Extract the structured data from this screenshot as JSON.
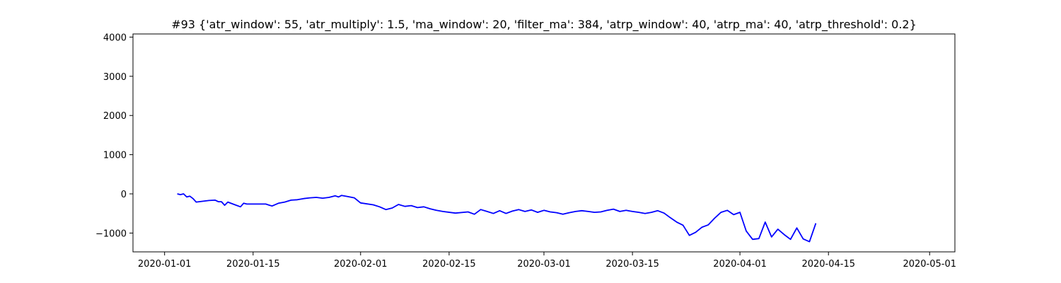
{
  "chart_data": {
    "type": "line",
    "title": "#93 {'atr_window': 55, 'atr_multiply': 1.5, 'ma_window': 20, 'filter_ma': 384, 'atrp_window': 40, 'atrp_ma': 40, 'atrp_threshold': 0.2}",
    "xlabel": "",
    "ylabel": "",
    "xlim": [
      "2019-12-27",
      "2020-05-05"
    ],
    "ylim": [
      -1480,
      4080
    ],
    "x_ticks": [
      "2020-01-01",
      "2020-01-15",
      "2020-02-01",
      "2020-02-15",
      "2020-03-01",
      "2020-03-15",
      "2020-04-01",
      "2020-04-15",
      "2020-05-01"
    ],
    "y_ticks": [
      -1000,
      0,
      1000,
      2000,
      3000,
      4000
    ],
    "grid": false,
    "series": [
      {
        "color": "#0000ff",
        "points": [
          [
            "2020-01-03",
            0
          ],
          [
            "2020-01-03T12:00",
            -20
          ],
          [
            "2020-01-04",
            0
          ],
          [
            "2020-01-04T12:00",
            -80
          ],
          [
            "2020-01-05",
            -60
          ],
          [
            "2020-01-05T12:00",
            -120
          ],
          [
            "2020-01-06",
            -210
          ],
          [
            "2020-01-08",
            -170
          ],
          [
            "2020-01-09",
            -160
          ],
          [
            "2020-01-09T12:00",
            -200
          ],
          [
            "2020-01-10",
            -200
          ],
          [
            "2020-01-10T12:00",
            -290
          ],
          [
            "2020-01-11",
            -210
          ],
          [
            "2020-01-12",
            -270
          ],
          [
            "2020-01-13",
            -330
          ],
          [
            "2020-01-13T12:00",
            -240
          ],
          [
            "2020-01-14",
            -260
          ],
          [
            "2020-01-17",
            -260
          ],
          [
            "2020-01-18",
            -310
          ],
          [
            "2020-01-19",
            -240
          ],
          [
            "2020-01-20",
            -210
          ],
          [
            "2020-01-21",
            -160
          ],
          [
            "2020-01-22",
            -150
          ],
          [
            "2020-01-23",
            -120
          ],
          [
            "2020-01-24",
            -100
          ],
          [
            "2020-01-25",
            -90
          ],
          [
            "2020-01-26",
            -110
          ],
          [
            "2020-01-27",
            -90
          ],
          [
            "2020-01-28",
            -50
          ],
          [
            "2020-01-28T12:00",
            -80
          ],
          [
            "2020-01-29",
            -40
          ],
          [
            "2020-01-30",
            -70
          ],
          [
            "2020-01-31",
            -100
          ],
          [
            "2020-02-01",
            -230
          ],
          [
            "2020-02-03",
            -280
          ],
          [
            "2020-02-04",
            -330
          ],
          [
            "2020-02-05",
            -400
          ],
          [
            "2020-02-06",
            -360
          ],
          [
            "2020-02-07",
            -270
          ],
          [
            "2020-02-08",
            -320
          ],
          [
            "2020-02-09",
            -300
          ],
          [
            "2020-02-10",
            -350
          ],
          [
            "2020-02-11",
            -330
          ],
          [
            "2020-02-12",
            -380
          ],
          [
            "2020-02-13",
            -420
          ],
          [
            "2020-02-14",
            -450
          ],
          [
            "2020-02-16",
            -490
          ],
          [
            "2020-02-18",
            -460
          ],
          [
            "2020-02-19",
            -520
          ],
          [
            "2020-02-20",
            -400
          ],
          [
            "2020-02-21",
            -450
          ],
          [
            "2020-02-22",
            -500
          ],
          [
            "2020-02-23",
            -430
          ],
          [
            "2020-02-24",
            -500
          ],
          [
            "2020-02-25",
            -440
          ],
          [
            "2020-02-26",
            -400
          ],
          [
            "2020-02-27",
            -450
          ],
          [
            "2020-02-28",
            -410
          ],
          [
            "2020-02-29",
            -470
          ],
          [
            "2020-03-01",
            -420
          ],
          [
            "2020-03-02",
            -460
          ],
          [
            "2020-03-03",
            -480
          ],
          [
            "2020-03-04",
            -520
          ],
          [
            "2020-03-05",
            -480
          ],
          [
            "2020-03-06",
            -450
          ],
          [
            "2020-03-07",
            -430
          ],
          [
            "2020-03-08",
            -450
          ],
          [
            "2020-03-09",
            -470
          ],
          [
            "2020-03-10",
            -460
          ],
          [
            "2020-03-11",
            -420
          ],
          [
            "2020-03-12",
            -390
          ],
          [
            "2020-03-13",
            -450
          ],
          [
            "2020-03-14",
            -420
          ],
          [
            "2020-03-15",
            -450
          ],
          [
            "2020-03-16",
            -470
          ],
          [
            "2020-03-17",
            -500
          ],
          [
            "2020-03-18",
            -470
          ],
          [
            "2020-03-19",
            -430
          ],
          [
            "2020-03-20",
            -490
          ],
          [
            "2020-03-21",
            -610
          ],
          [
            "2020-03-22",
            -720
          ],
          [
            "2020-03-23",
            -800
          ],
          [
            "2020-03-24",
            -1060
          ],
          [
            "2020-03-25",
            -980
          ],
          [
            "2020-03-26",
            -850
          ],
          [
            "2020-03-27",
            -790
          ],
          [
            "2020-03-28",
            -620
          ],
          [
            "2020-03-29",
            -470
          ],
          [
            "2020-03-30",
            -420
          ],
          [
            "2020-03-31",
            -530
          ],
          [
            "2020-04-01",
            -470
          ],
          [
            "2020-04-02",
            -950
          ],
          [
            "2020-04-03",
            -1160
          ],
          [
            "2020-04-04",
            -1140
          ],
          [
            "2020-04-05",
            -720
          ],
          [
            "2020-04-06",
            -1100
          ],
          [
            "2020-04-07",
            -900
          ],
          [
            "2020-04-08",
            -1040
          ],
          [
            "2020-04-09",
            -1160
          ],
          [
            "2020-04-10",
            -870
          ],
          [
            "2020-04-11",
            -1150
          ],
          [
            "2020-04-12",
            -1220
          ],
          [
            "2020-04-13",
            -750
          ]
        ]
      }
    ]
  }
}
